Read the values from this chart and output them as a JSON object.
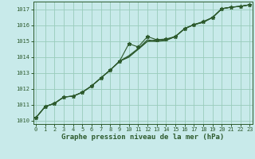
{
  "title": "Graphe pression niveau de la mer (hPa)",
  "bg_color": "#c8eaea",
  "grid_color": "#99ccbb",
  "line_color": "#2d5a2d",
  "x_values": [
    0,
    1,
    2,
    3,
    4,
    5,
    6,
    7,
    8,
    9,
    10,
    11,
    12,
    13,
    14,
    15,
    16,
    17,
    18,
    19,
    20,
    21,
    22,
    23
  ],
  "series": [
    [
      1010.2,
      1010.9,
      1011.1,
      1011.5,
      1011.55,
      1011.8,
      1012.2,
      1012.7,
      1013.2,
      1013.75,
      1014.85,
      1014.65,
      1015.3,
      1015.1,
      1015.15,
      1015.3,
      1015.8,
      1016.05,
      1016.25,
      1016.5,
      1017.05,
      1017.15,
      1017.2,
      1017.3
    ],
    [
      1010.2,
      1010.9,
      1011.1,
      1011.5,
      1011.55,
      1011.8,
      1012.2,
      1012.7,
      1013.2,
      1013.75,
      1014.0,
      1014.5,
      1015.0,
      1015.1,
      1015.1,
      1015.3,
      1015.8,
      1016.05,
      1016.2,
      1016.5,
      1017.05,
      1017.15,
      1017.2,
      1017.3
    ],
    [
      1010.2,
      1010.9,
      1011.1,
      1011.5,
      1011.55,
      1011.8,
      1012.2,
      1012.7,
      1013.2,
      1013.75,
      1014.1,
      1014.55,
      1015.1,
      1015.0,
      1015.1,
      1015.3,
      1015.8,
      1016.05,
      1016.2,
      1016.5,
      1017.05,
      1017.15,
      1017.2,
      1017.3
    ],
    [
      1010.2,
      1010.9,
      1011.1,
      1011.5,
      1011.55,
      1011.8,
      1012.2,
      1012.7,
      1013.2,
      1013.75,
      1014.05,
      1014.5,
      1015.0,
      1015.0,
      1015.05,
      1015.3,
      1015.8,
      1016.05,
      1016.2,
      1016.5,
      1017.05,
      1017.15,
      1017.2,
      1017.3
    ]
  ],
  "ylim": [
    1009.8,
    1017.5
  ],
  "yticks": [
    1010,
    1011,
    1012,
    1013,
    1014,
    1015,
    1016,
    1017
  ],
  "xticks": [
    0,
    1,
    2,
    3,
    4,
    5,
    6,
    7,
    8,
    9,
    10,
    11,
    12,
    13,
    14,
    15,
    16,
    17,
    18,
    19,
    20,
    21,
    22,
    23
  ],
  "marker_size": 3.5,
  "line_width": 0.8,
  "title_fontsize": 6.5,
  "tick_fontsize": 5.0
}
